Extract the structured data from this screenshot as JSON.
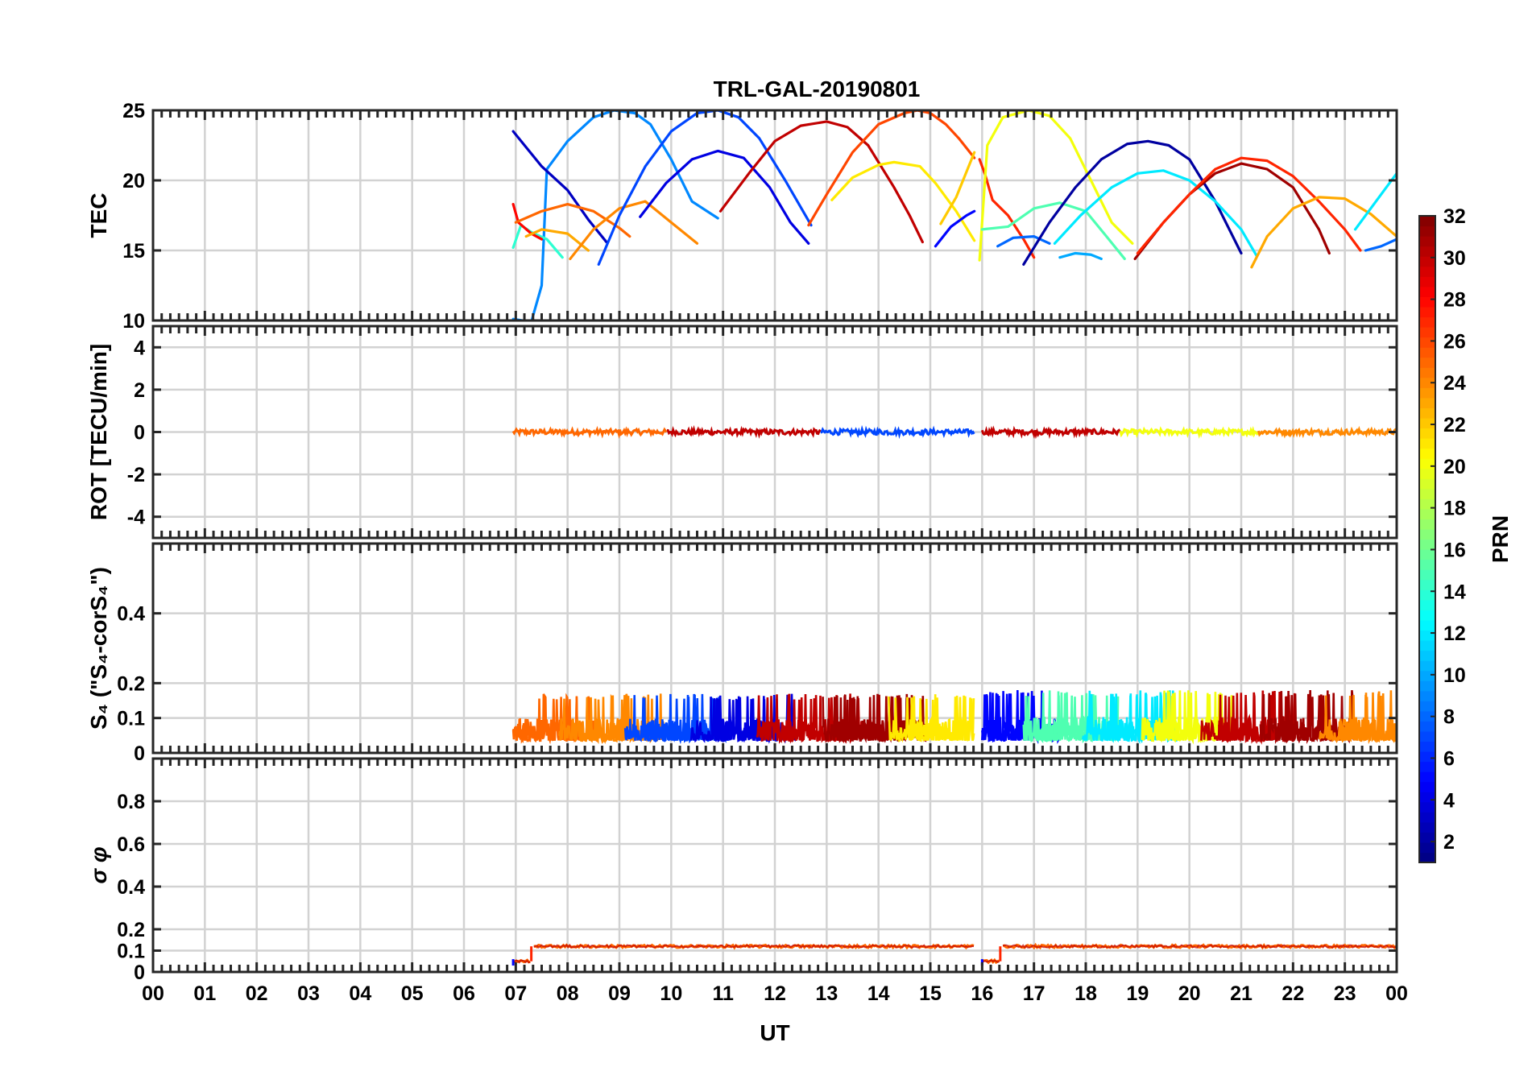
{
  "title": "TRL-GAL-20190801",
  "x_axis": {
    "label": "UT",
    "ticks": [
      "00",
      "01",
      "02",
      "03",
      "04",
      "05",
      "06",
      "07",
      "08",
      "09",
      "10",
      "11",
      "12",
      "13",
      "14",
      "15",
      "16",
      "17",
      "18",
      "19",
      "20",
      "21",
      "22",
      "23",
      "00"
    ],
    "range_hours": [
      0,
      24
    ]
  },
  "colorbar": {
    "label": "PRN",
    "range": [
      1,
      32
    ],
    "ticks": [
      "2",
      "4",
      "6",
      "8",
      "10",
      "12",
      "14",
      "16",
      "18",
      "20",
      "22",
      "24",
      "26",
      "28",
      "30",
      "32"
    ],
    "colormap": "jet"
  },
  "chart_data": [
    {
      "type": "line",
      "panel": "TEC",
      "ylabel": "TEC",
      "ylim": [
        10,
        25
      ],
      "yticks": [
        "10",
        "15",
        "20",
        "25"
      ],
      "grid": true,
      "series": [
        {
          "prn": 9,
          "x": [
            6.95,
            7.3,
            7.5,
            7.6,
            8.0,
            8.5,
            8.9,
            9.3,
            9.6,
            10.0,
            10.4,
            10.9
          ],
          "y": [
            10.1,
            9.9,
            12.5,
            20.8,
            22.8,
            24.5,
            25.0,
            24.8,
            24.0,
            21.5,
            18.5,
            17.3
          ]
        },
        {
          "prn": 3,
          "x": [
            6.95,
            7.5,
            8.0,
            8.4,
            8.75
          ],
          "y": [
            23.5,
            21.0,
            19.3,
            17.2,
            15.6
          ]
        },
        {
          "prn": 14,
          "x": [
            6.95,
            7.1,
            7.3,
            7.6,
            7.9
          ],
          "y": [
            15.2,
            16.8,
            16.3,
            15.8,
            14.5
          ]
        },
        {
          "prn": 28,
          "x": [
            6.95,
            7.05,
            7.3,
            7.5
          ],
          "y": [
            18.3,
            17.0,
            16.2,
            15.8
          ]
        },
        {
          "prn": 25,
          "x": [
            7.0,
            7.5,
            8.0,
            8.5,
            9.0,
            9.2
          ],
          "y": [
            17.0,
            17.8,
            18.3,
            17.8,
            16.6,
            16.0
          ]
        },
        {
          "prn": 23,
          "x": [
            7.2,
            7.5,
            8.0,
            8.4
          ],
          "y": [
            16.0,
            16.5,
            16.2,
            15.0
          ]
        },
        {
          "prn": 24,
          "x": [
            8.05,
            8.5,
            9.0,
            9.5,
            10.0,
            10.5
          ],
          "y": [
            14.4,
            16.5,
            18.0,
            18.5,
            17.0,
            15.5
          ]
        },
        {
          "prn": 7,
          "x": [
            8.6,
            9.0,
            9.5,
            10.0,
            10.5,
            10.9,
            11.3,
            11.7,
            12.2,
            12.7
          ],
          "y": [
            14.0,
            17.5,
            21.0,
            23.5,
            24.8,
            25.0,
            24.5,
            23.0,
            20.0,
            16.8
          ]
        },
        {
          "prn": 4,
          "x": [
            9.4,
            9.9,
            10.4,
            10.9,
            11.4,
            11.9,
            12.3,
            12.65
          ],
          "y": [
            17.4,
            19.8,
            21.5,
            22.1,
            21.6,
            19.5,
            17.0,
            15.5
          ]
        },
        {
          "prn": 30,
          "x": [
            10.95,
            11.5,
            12.0,
            12.5,
            13.0,
            13.4,
            13.8,
            14.3,
            14.6,
            14.85
          ],
          "y": [
            17.8,
            20.5,
            22.8,
            23.9,
            24.2,
            23.8,
            22.5,
            19.5,
            17.5,
            15.6
          ]
        },
        {
          "prn": 26,
          "x": [
            12.65,
            13.0,
            13.5,
            14.0,
            14.5,
            14.75,
            15.0,
            15.3,
            15.55,
            15.85
          ],
          "y": [
            16.8,
            19.0,
            22.0,
            24.0,
            24.8,
            25.0,
            24.8,
            24.0,
            23.0,
            21.6
          ]
        },
        {
          "prn": 21,
          "x": [
            13.1,
            13.5,
            14.0,
            14.3,
            14.8,
            15.1,
            15.5,
            15.85
          ],
          "y": [
            18.6,
            20.2,
            21.1,
            21.3,
            21.0,
            19.8,
            17.8,
            15.7
          ]
        },
        {
          "prn": 22,
          "x": [
            15.2,
            15.5,
            15.85
          ],
          "y": [
            16.9,
            18.8,
            22.0
          ]
        },
        {
          "prn": 5,
          "x": [
            15.1,
            15.4,
            15.7,
            15.85
          ],
          "y": [
            15.3,
            16.7,
            17.5,
            17.8
          ]
        },
        {
          "prn": 27,
          "x": [
            15.95,
            16.05,
            16.2,
            16.5,
            16.8,
            17.0
          ],
          "y": [
            21.5,
            20.5,
            18.6,
            17.5,
            15.8,
            14.5
          ]
        },
        {
          "prn": 20,
          "x": [
            15.95,
            16.1,
            16.4,
            16.9,
            17.3,
            17.7,
            18.1,
            18.5,
            18.9
          ],
          "y": [
            14.3,
            22.5,
            24.5,
            25.0,
            24.6,
            23.0,
            20.0,
            17.0,
            15.5
          ]
        },
        {
          "prn": 8,
          "x": [
            16.3,
            16.6,
            17.0,
            17.3
          ],
          "y": [
            15.3,
            15.9,
            16.0,
            15.5
          ]
        },
        {
          "prn": 15,
          "x": [
            16.0,
            16.5,
            17.0,
            17.5,
            18.0,
            18.4,
            18.75
          ],
          "y": [
            16.5,
            16.7,
            18.0,
            18.4,
            17.8,
            16.0,
            14.4
          ]
        },
        {
          "prn": 10,
          "x": [
            17.5,
            17.8,
            18.1,
            18.3
          ],
          "y": [
            14.5,
            14.8,
            14.7,
            14.4
          ]
        },
        {
          "prn": 2,
          "x": [
            16.8,
            17.3,
            17.8,
            18.3,
            18.8,
            19.2,
            19.6,
            20.0,
            20.5,
            21.0
          ],
          "y": [
            14.0,
            17.0,
            19.5,
            21.5,
            22.6,
            22.8,
            22.5,
            21.5,
            18.5,
            14.8
          ]
        },
        {
          "prn": 12,
          "x": [
            17.4,
            17.9,
            18.5,
            19.0,
            19.5,
            20.0,
            20.5,
            21.0,
            21.3
          ],
          "y": [
            15.5,
            17.5,
            19.5,
            20.5,
            20.7,
            20.0,
            18.5,
            16.5,
            14.6
          ]
        },
        {
          "prn": 31,
          "x": [
            18.95,
            19.5,
            20.0,
            20.5,
            21.0,
            21.5,
            22.0,
            22.5,
            22.7
          ],
          "y": [
            14.4,
            17.0,
            19.0,
            20.5,
            21.2,
            20.8,
            19.5,
            16.5,
            14.8
          ]
        },
        {
          "prn": 27,
          "x": [
            19.0,
            19.5,
            20.0,
            20.5,
            21.0,
            21.5,
            22.0,
            22.5,
            23.0,
            23.3
          ],
          "y": [
            14.8,
            17.0,
            19.0,
            20.8,
            21.6,
            21.4,
            20.3,
            18.5,
            16.5,
            15.0
          ]
        },
        {
          "prn": 23,
          "x": [
            21.2,
            21.5,
            22.0,
            22.5,
            23.0,
            23.5,
            24.0
          ],
          "y": [
            13.8,
            16.0,
            18.0,
            18.8,
            18.7,
            17.6,
            16.0
          ]
        },
        {
          "prn": 12,
          "x": [
            23.2,
            23.5,
            23.8,
            24.0
          ],
          "y": [
            16.5,
            18.0,
            19.5,
            20.5
          ]
        },
        {
          "prn": 8,
          "x": [
            23.4,
            23.7,
            24.0
          ],
          "y": [
            15.0,
            15.3,
            15.8
          ]
        }
      ]
    },
    {
      "type": "line",
      "panel": "ROT",
      "ylabel": "ROT [TECU/min]",
      "ylim": [
        -5,
        5
      ],
      "yticks": [
        "-4",
        "-2",
        "0",
        "2",
        "4"
      ],
      "grid": true,
      "segments": [
        {
          "x": [
            6.95,
            15.85
          ],
          "y": 0.0,
          "colors_prn": [
            25,
            30,
            7
          ]
        },
        {
          "x": [
            16.0,
            24.0
          ],
          "y": 0.0,
          "colors_prn": [
            30,
            20,
            24
          ]
        }
      ]
    },
    {
      "type": "line",
      "panel": "S4",
      "ylabel": "S₄ (\"S₄-corS₄\")",
      "ylim": [
        0,
        0.6
      ],
      "yticks": [
        "0",
        "0.1",
        "0.2",
        "0.4"
      ],
      "grid": true,
      "segments": [
        {
          "x": [
            6.95,
            15.85
          ],
          "baseline": 0.035,
          "peak": 0.17,
          "colors_prn": [
            25,
            24,
            7,
            4,
            30,
            31,
            21
          ]
        },
        {
          "x": [
            16.0,
            24.0
          ],
          "baseline": 0.035,
          "peak": 0.18,
          "colors_prn": [
            5,
            15,
            12,
            20,
            30,
            31,
            24
          ]
        }
      ]
    },
    {
      "type": "line",
      "panel": "sigma_phi",
      "ylabel": "σ φ",
      "ylim": [
        0,
        1
      ],
      "yticks": [
        "0",
        "0.1",
        "0.2",
        "0.4",
        "0.6",
        "0.8"
      ],
      "grid": true,
      "segments": [
        {
          "x": [
            6.95,
            7.3
          ],
          "y": 0.05
        },
        {
          "x": [
            7.35,
            15.85
          ],
          "y": 0.12
        },
        {
          "x": [
            16.0,
            16.35
          ],
          "y": 0.05
        },
        {
          "x": [
            16.4,
            24.0
          ],
          "y": 0.12
        }
      ]
    }
  ]
}
